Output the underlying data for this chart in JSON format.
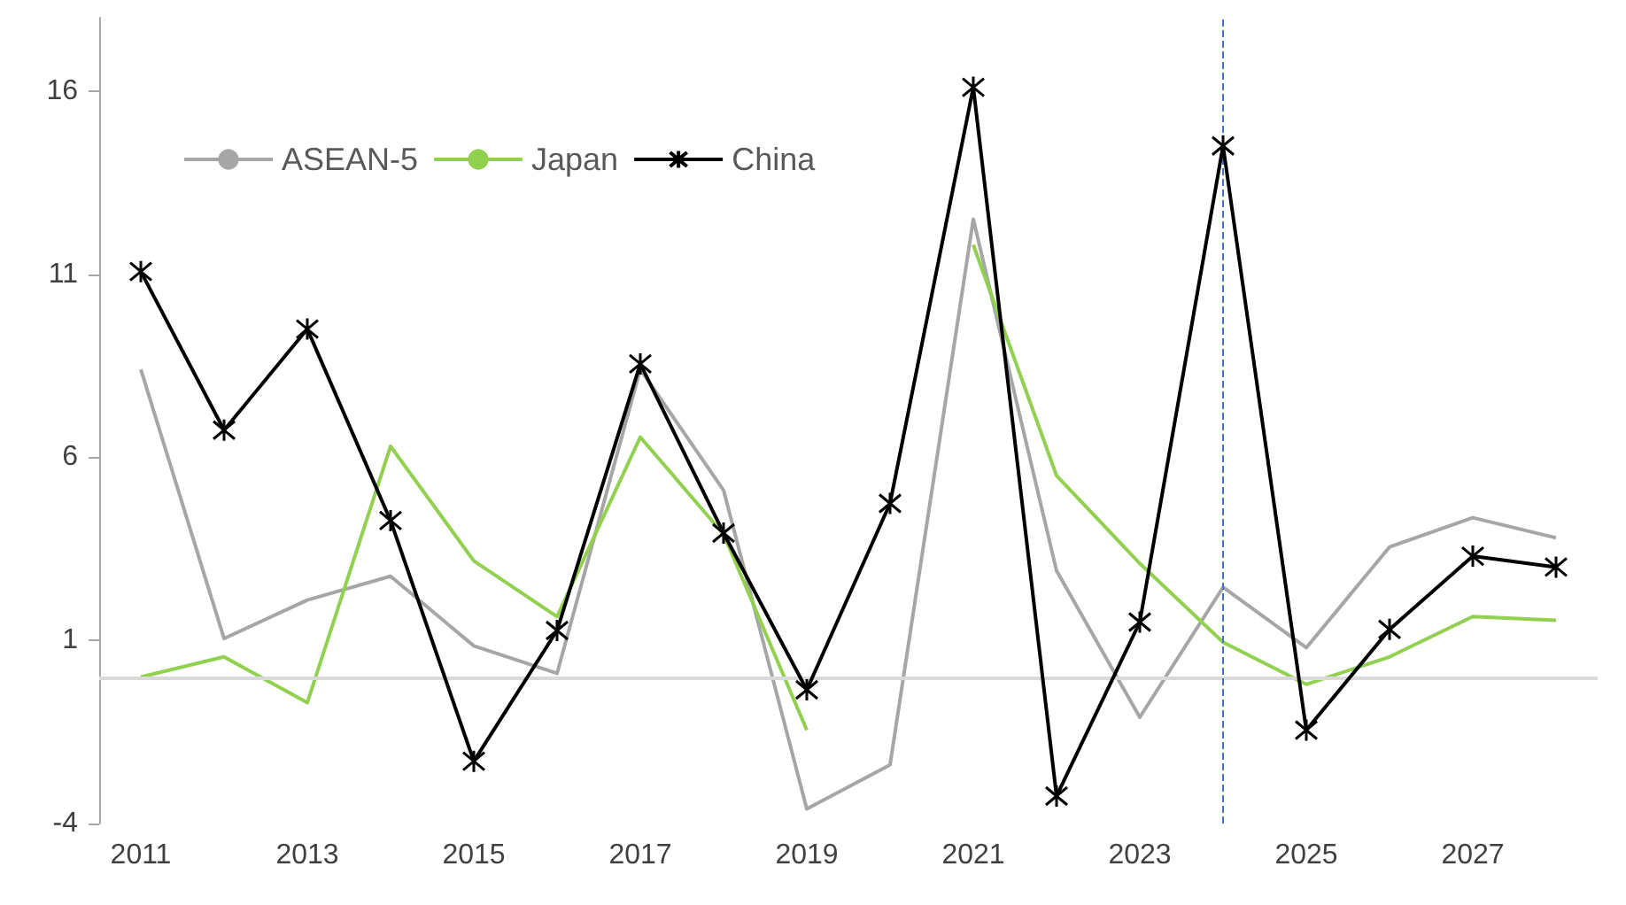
{
  "chart_data": {
    "type": "line",
    "x": [
      2011,
      2012,
      2013,
      2014,
      2015,
      2016,
      2017,
      2018,
      2019,
      2020,
      2021,
      2022,
      2023,
      2024,
      2025,
      2026,
      2027,
      2028
    ],
    "series": [
      {
        "name": "ASEAN-5",
        "color": "#a6a6a6",
        "marker": "none",
        "values": [
          8.4,
          1.05,
          2.1,
          2.75,
          0.85,
          0.1,
          8.4,
          5.1,
          -3.6,
          -2.4,
          12.5,
          2.9,
          -1.1,
          2.45,
          0.8,
          3.55,
          4.35,
          3.8
        ]
      },
      {
        "name": "Japan",
        "color": "#92d050",
        "marker": "none",
        "values": [
          0,
          0.55,
          -0.7,
          6.3,
          3.17,
          1.65,
          6.55,
          3.9,
          -1.45,
          null,
          11.8,
          5.5,
          3.1,
          0.95,
          -0.2,
          0.55,
          1.65,
          1.55
        ]
      },
      {
        "name": "China",
        "color": "#000000",
        "marker": "cross",
        "values": [
          11.07,
          6.74,
          9.5,
          4.27,
          -2.3,
          1.27,
          8.55,
          3.93,
          -0.35,
          4.74,
          16.1,
          -3.25,
          1.5,
          14.5,
          -1.45,
          1.3,
          3.3,
          3.0
        ]
      }
    ],
    "xlim": [
      2010.5,
      2028.5
    ],
    "xticks": [
      2011,
      2013,
      2015,
      2017,
      2019,
      2021,
      2023,
      2025,
      2027
    ],
    "ylim": [
      -4,
      18
    ],
    "yticks": [
      -4,
      1,
      6,
      11,
      16
    ],
    "ref_lines": [
      {
        "axis": "y",
        "value": 0,
        "color": "#d9d9d9",
        "line_style": "solid"
      },
      {
        "axis": "x",
        "value": 2024,
        "color": "#4472c4",
        "line_style": "dashed"
      }
    ],
    "grid": false,
    "legend": "top left",
    "line_style": "solid"
  }
}
